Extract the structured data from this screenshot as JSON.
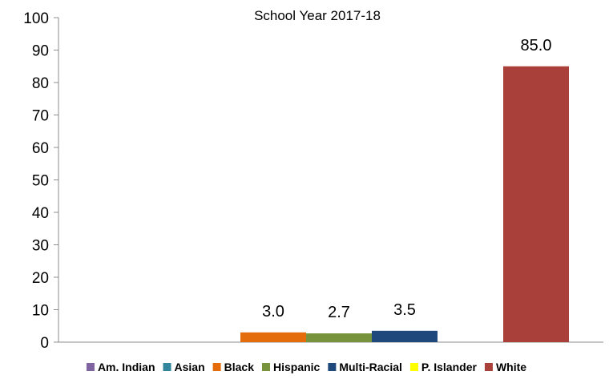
{
  "chart_data": {
    "type": "bar",
    "title": "",
    "subtitle": "School Year 2017-18",
    "xlabel": "",
    "ylabel": "",
    "ylim": [
      0,
      100
    ],
    "yticks": [
      "0",
      "10",
      "20",
      "30",
      "40",
      "50",
      "60",
      "70",
      "80",
      "90",
      "100"
    ],
    "grid": false,
    "legend_position": "bottom",
    "series": [
      {
        "name": "Am. Indian",
        "value": null,
        "label": "",
        "color": "#8064a2"
      },
      {
        "name": "Asian",
        "value": null,
        "label": "",
        "color": "#31859c"
      },
      {
        "name": "Black",
        "value": 3.0,
        "label": "3.0",
        "color": "#e46c0a"
      },
      {
        "name": "Hispanic",
        "value": 2.7,
        "label": "2.7",
        "color": "#77933c"
      },
      {
        "name": "Multi-Racial",
        "value": 3.5,
        "label": "3.5",
        "color": "#1f497d"
      },
      {
        "name": "P. Islander",
        "value": null,
        "label": "",
        "color": "#ffff00"
      },
      {
        "name": "White",
        "value": 85.0,
        "label": "85.0",
        "color": "#a9403a"
      }
    ]
  }
}
